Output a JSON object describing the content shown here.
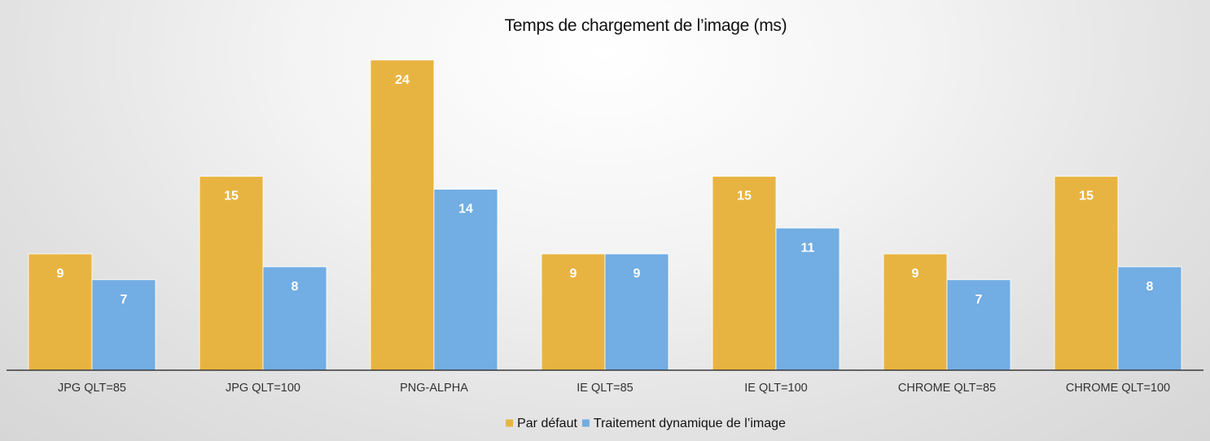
{
  "chart_data": {
    "type": "bar",
    "title": "Temps de chargement de l’image (ms)",
    "xlabel": "",
    "ylabel": "",
    "ylim": [
      0,
      26
    ],
    "grid": false,
    "legend_position": "bottom",
    "data_labels": true,
    "categories": [
      "JPG QLT=85",
      "JPG QLT=100",
      "PNG-ALPHA",
      "IE QLT=85",
      "IE QLT=100",
      "CHROME QLT=85",
      "CHROME QLT=100"
    ],
    "series": [
      {
        "name": "Par défaut",
        "color": "#E8B441",
        "values": [
          9,
          15,
          24,
          9,
          15,
          9,
          15
        ]
      },
      {
        "name": "Traitement dynamique de l’image",
        "color": "#72ADE3",
        "values": [
          7,
          8,
          14,
          9,
          11,
          7,
          8
        ]
      }
    ]
  }
}
